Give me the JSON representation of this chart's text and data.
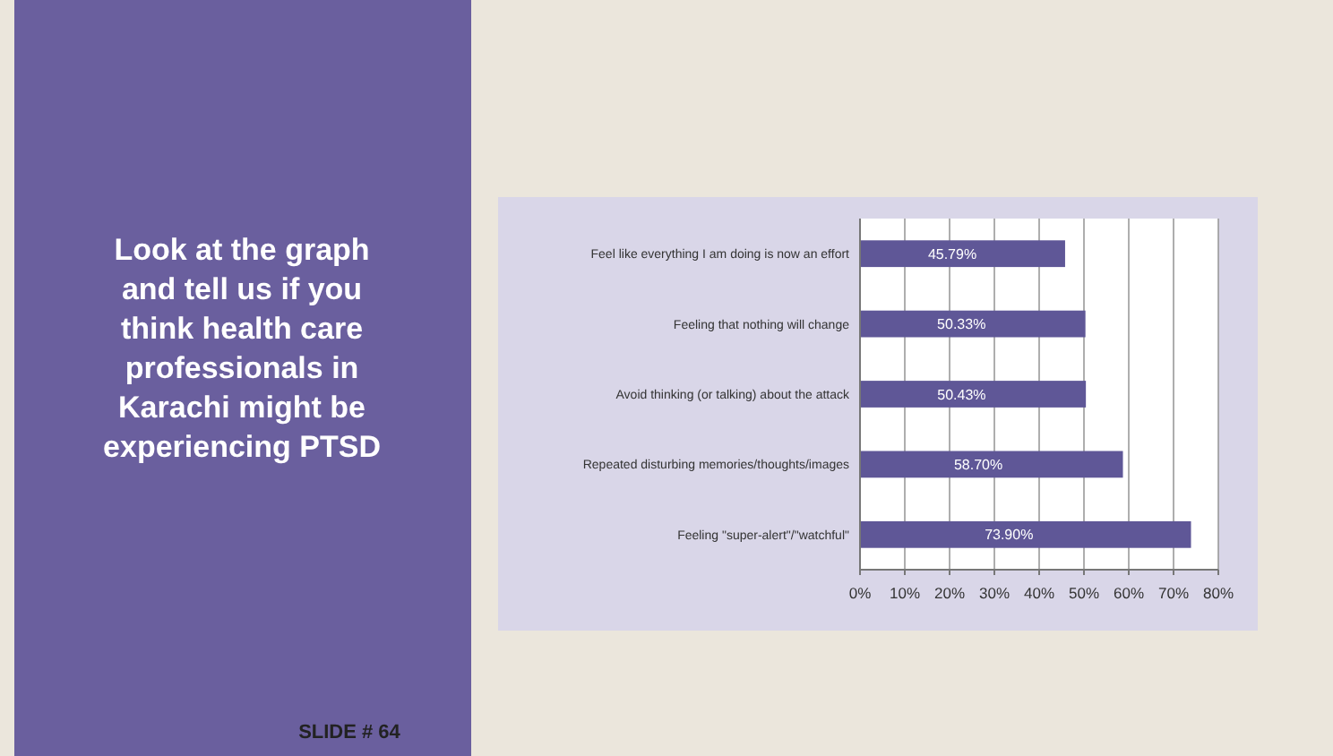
{
  "chart_data": {
    "type": "bar",
    "orientation": "horizontal",
    "title": "Look at the graph and tell us if you think health care professionals in Karachi might be experiencing PTSD",
    "categories": [
      "Feel like everything I am doing is now an effort",
      "Feeling that nothing will change",
      "Avoid thinking (or talking) about the attack",
      "Repeated disturbing memories/thoughts/images",
      "Feeling \"super-alert\"/\"watchful\""
    ],
    "values": [
      45.79,
      50.33,
      50.43,
      58.7,
      73.9
    ],
    "value_labels": [
      "45.79%",
      "50.33%",
      "50.43%",
      "58.70%",
      "73.90%"
    ],
    "color": "#5f5797",
    "xlim": [
      0,
      80
    ],
    "xticks": [
      {
        "value": 0,
        "label": "0%"
      },
      {
        "value": 10,
        "label": "10%"
      },
      {
        "value": 20,
        "label": "20%"
      },
      {
        "value": 30,
        "label": "30%"
      },
      {
        "value": 40,
        "label": "40%"
      },
      {
        "value": 50,
        "label": "50%"
      },
      {
        "value": 60,
        "label": "60%"
      },
      {
        "value": 70,
        "label": "70%"
      },
      {
        "value": 80,
        "label": "80%"
      }
    ],
    "grid": "x",
    "annotations": [
      "SLIDE # 64"
    ]
  }
}
